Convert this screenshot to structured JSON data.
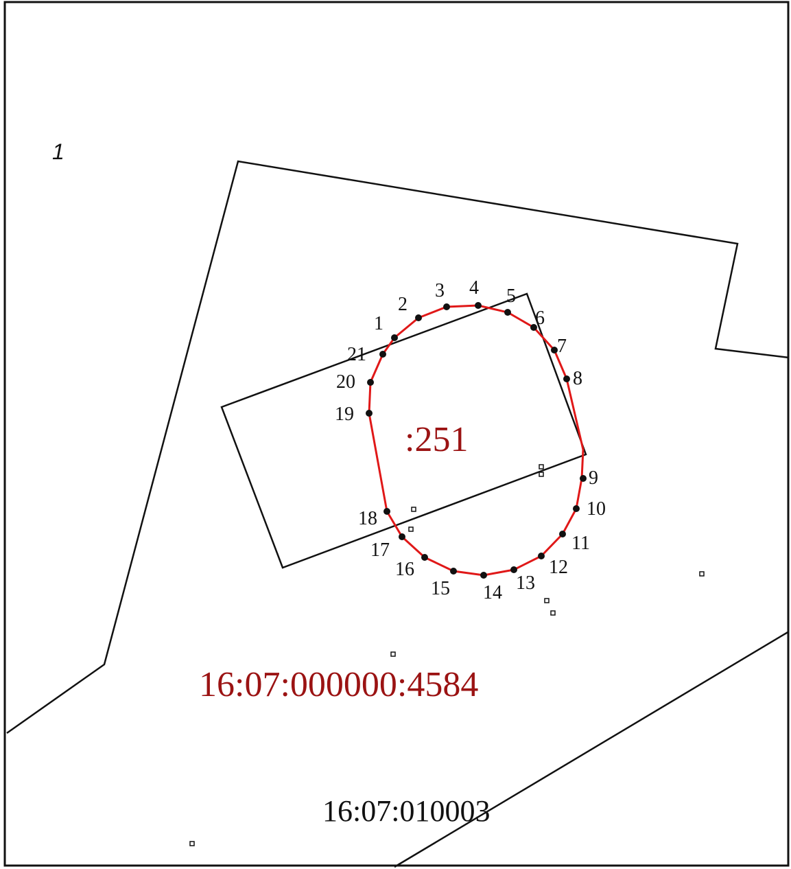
{
  "sheet_number": "1",
  "parcel_label": "16:07:000000:4584",
  "building_label": ":251",
  "block_label": "16:07:010003",
  "contour_points": [
    "1",
    "2",
    "3",
    "4",
    "5",
    "6",
    "7",
    "8",
    "9",
    "10",
    "11",
    "12",
    "13",
    "14",
    "15",
    "16",
    "17",
    "18",
    "19",
    "20",
    "21"
  ],
  "colors": {
    "contour": "#e01818",
    "parcel_label": "#9b1313",
    "lines": "#111111",
    "background": "#ffffff"
  }
}
